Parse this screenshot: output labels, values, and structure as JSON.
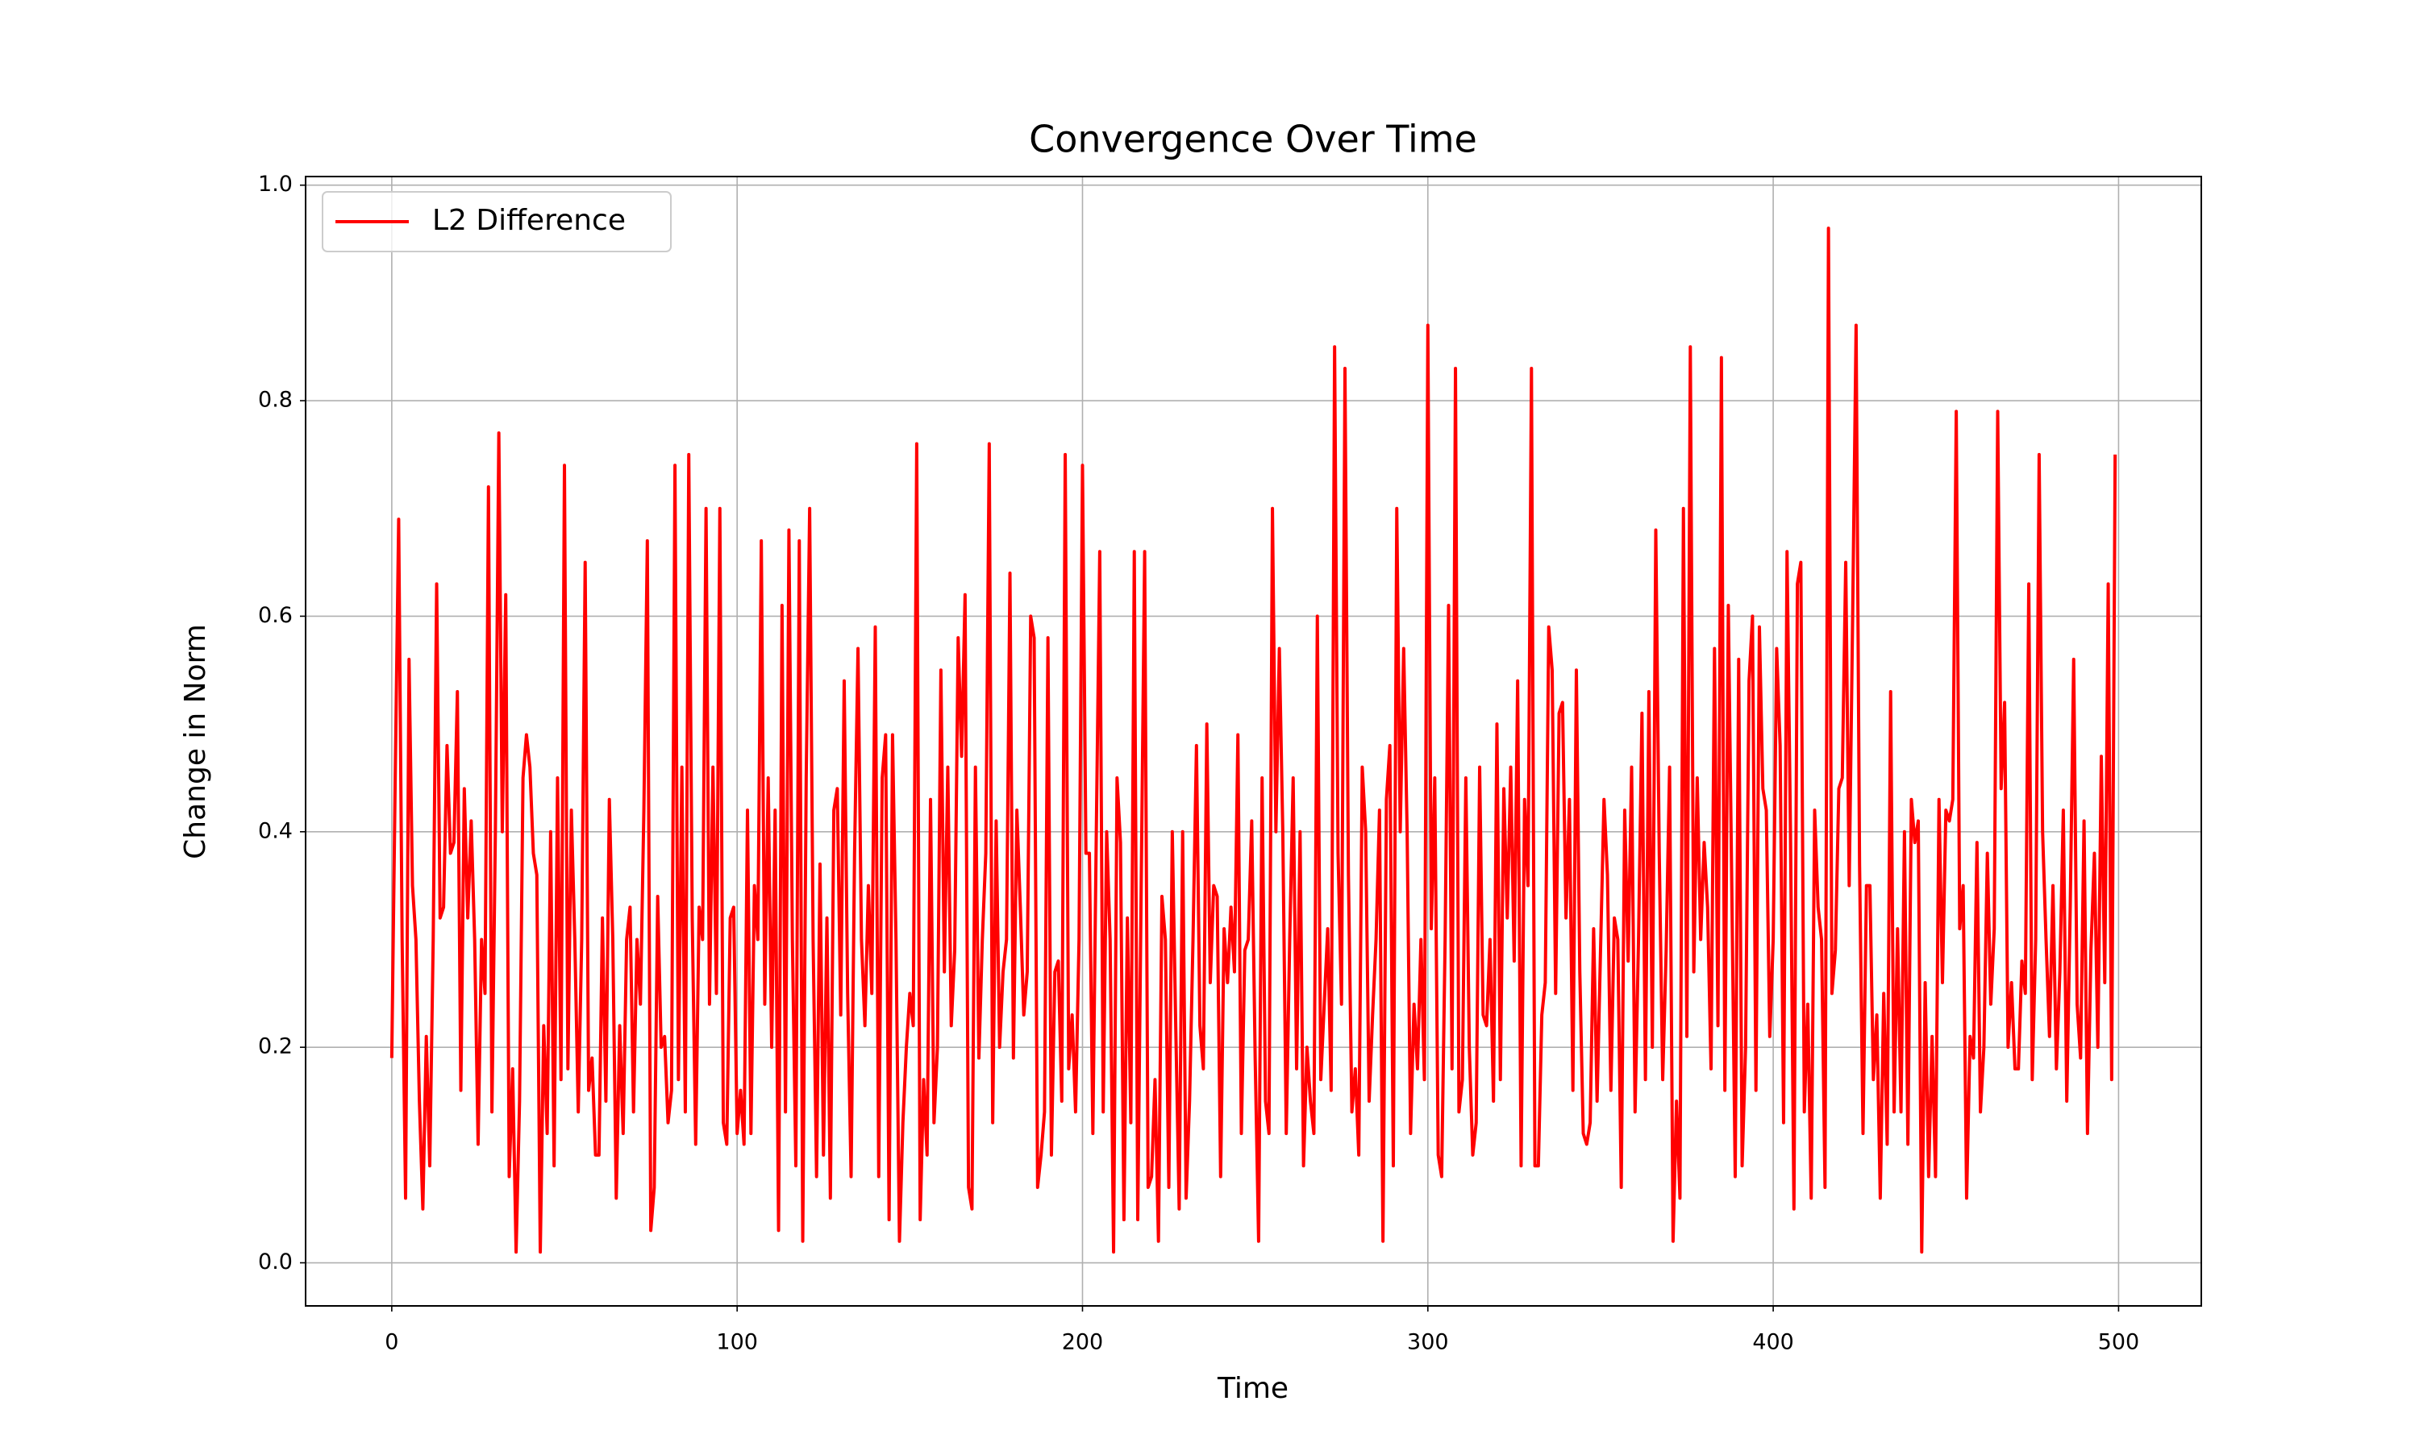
{
  "chart_data": {
    "type": "line",
    "title": "Convergence Over Time",
    "xlabel": "Time",
    "ylabel": "Change in Norm",
    "series": [
      {
        "name": "L2 Difference",
        "color": "#ff0000",
        "values": [
          0.19,
          0.45,
          0.69,
          0.3,
          0.06,
          0.56,
          0.35,
          0.3,
          0.15,
          0.05,
          0.21,
          0.09,
          0.3,
          0.63,
          0.32,
          0.33,
          0.48,
          0.38,
          0.39,
          0.53,
          0.16,
          0.44,
          0.32,
          0.41,
          0.3,
          0.11,
          0.3,
          0.25,
          0.72,
          0.14,
          0.4,
          0.77,
          0.4,
          0.62,
          0.08,
          0.18,
          0.01,
          0.15,
          0.45,
          0.49,
          0.46,
          0.38,
          0.36,
          0.01,
          0.22,
          0.12,
          0.4,
          0.09,
          0.45,
          0.17,
          0.74,
          0.18,
          0.42,
          0.3,
          0.14,
          0.3,
          0.65,
          0.16,
          0.19,
          0.1,
          0.1,
          0.32,
          0.15,
          0.43,
          0.3,
          0.06,
          0.22,
          0.12,
          0.3,
          0.33,
          0.14,
          0.3,
          0.24,
          0.42,
          0.67,
          0.03,
          0.07,
          0.34,
          0.2,
          0.21,
          0.13,
          0.16,
          0.74,
          0.17,
          0.46,
          0.14,
          0.75,
          0.32,
          0.11,
          0.33,
          0.3,
          0.7,
          0.24,
          0.46,
          0.25,
          0.7,
          0.13,
          0.11,
          0.32,
          0.33,
          0.12,
          0.16,
          0.11,
          0.42,
          0.12,
          0.35,
          0.3,
          0.67,
          0.24,
          0.45,
          0.2,
          0.42,
          0.03,
          0.61,
          0.14,
          0.68,
          0.3,
          0.09,
          0.67,
          0.02,
          0.45,
          0.7,
          0.3,
          0.08,
          0.37,
          0.1,
          0.32,
          0.06,
          0.42,
          0.44,
          0.23,
          0.54,
          0.25,
          0.08,
          0.38,
          0.57,
          0.3,
          0.22,
          0.35,
          0.25,
          0.59,
          0.08,
          0.45,
          0.49,
          0.04,
          0.49,
          0.3,
          0.02,
          0.13,
          0.2,
          0.25,
          0.22,
          0.76,
          0.04,
          0.17,
          0.1,
          0.43,
          0.13,
          0.2,
          0.55,
          0.27,
          0.46,
          0.22,
          0.29,
          0.58,
          0.47,
          0.62,
          0.07,
          0.05,
          0.46,
          0.19,
          0.3,
          0.38,
          0.76,
          0.13,
          0.41,
          0.2,
          0.27,
          0.3,
          0.64,
          0.19,
          0.42,
          0.33,
          0.23,
          0.27,
          0.6,
          0.58,
          0.07,
          0.1,
          0.14,
          0.58,
          0.1,
          0.27,
          0.28,
          0.15,
          0.75,
          0.18,
          0.23,
          0.14,
          0.3,
          0.74,
          0.38,
          0.38,
          0.12,
          0.4,
          0.66,
          0.14,
          0.4,
          0.3,
          0.01,
          0.45,
          0.39,
          0.04,
          0.32,
          0.13,
          0.66,
          0.04,
          0.35,
          0.66,
          0.07,
          0.08,
          0.17,
          0.02,
          0.34,
          0.3,
          0.07,
          0.4,
          0.22,
          0.05,
          0.4,
          0.06,
          0.15,
          0.3,
          0.48,
          0.22,
          0.18,
          0.5,
          0.26,
          0.35,
          0.34,
          0.08,
          0.31,
          0.26,
          0.33,
          0.27,
          0.49,
          0.12,
          0.29,
          0.3,
          0.41,
          0.19,
          0.02,
          0.45,
          0.15,
          0.12,
          0.7,
          0.4,
          0.57,
          0.4,
          0.12,
          0.3,
          0.45,
          0.18,
          0.4,
          0.09,
          0.2,
          0.15,
          0.12,
          0.6,
          0.17,
          0.24,
          0.31,
          0.16,
          0.85,
          0.38,
          0.24,
          0.83,
          0.36,
          0.14,
          0.18,
          0.1,
          0.46,
          0.4,
          0.15,
          0.23,
          0.3,
          0.42,
          0.02,
          0.43,
          0.48,
          0.09,
          0.7,
          0.4,
          0.57,
          0.4,
          0.12,
          0.24,
          0.18,
          0.3,
          0.17,
          0.87,
          0.31,
          0.45,
          0.1,
          0.08,
          0.3,
          0.61,
          0.18,
          0.83,
          0.14,
          0.17,
          0.45,
          0.2,
          0.1,
          0.13,
          0.46,
          0.23,
          0.22,
          0.3,
          0.15,
          0.5,
          0.17,
          0.44,
          0.32,
          0.46,
          0.28,
          0.54,
          0.09,
          0.43,
          0.35,
          0.83,
          0.09,
          0.09,
          0.23,
          0.26,
          0.59,
          0.55,
          0.25,
          0.51,
          0.52,
          0.32,
          0.43,
          0.16,
          0.55,
          0.27,
          0.12,
          0.11,
          0.13,
          0.31,
          0.15,
          0.29,
          0.43,
          0.36,
          0.16,
          0.32,
          0.3,
          0.07,
          0.42,
          0.28,
          0.46,
          0.14,
          0.3,
          0.51,
          0.17,
          0.53,
          0.2,
          0.68,
          0.38,
          0.17,
          0.29,
          0.46,
          0.02,
          0.15,
          0.06,
          0.7,
          0.21,
          0.85,
          0.27,
          0.45,
          0.3,
          0.39,
          0.33,
          0.18,
          0.57,
          0.22,
          0.84,
          0.16,
          0.61,
          0.35,
          0.08,
          0.56,
          0.09,
          0.2,
          0.54,
          0.6,
          0.16,
          0.59,
          0.44,
          0.42,
          0.21,
          0.3,
          0.57,
          0.48,
          0.13,
          0.66,
          0.4,
          0.05,
          0.63,
          0.65,
          0.14,
          0.24,
          0.06,
          0.42,
          0.33,
          0.3,
          0.07,
          0.96,
          0.25,
          0.29,
          0.44,
          0.45,
          0.65,
          0.35,
          0.6,
          0.87,
          0.37,
          0.12,
          0.35,
          0.35,
          0.17,
          0.23,
          0.06,
          0.25,
          0.11,
          0.53,
          0.14,
          0.31,
          0.14,
          0.4,
          0.11,
          0.43,
          0.39,
          0.41,
          0.01,
          0.26,
          0.08,
          0.21,
          0.08,
          0.43,
          0.26,
          0.42,
          0.41,
          0.43,
          0.79,
          0.31,
          0.35,
          0.06,
          0.21,
          0.19,
          0.39,
          0.14,
          0.2,
          0.38,
          0.24,
          0.31,
          0.79,
          0.44,
          0.52,
          0.2,
          0.26,
          0.18,
          0.18,
          0.28,
          0.25,
          0.63,
          0.17,
          0.3,
          0.75,
          0.4,
          0.3,
          0.21,
          0.35,
          0.18,
          0.27,
          0.42,
          0.15,
          0.33,
          0.56,
          0.24,
          0.19,
          0.41,
          0.12,
          0.29,
          0.38,
          0.2,
          0.47,
          0.26,
          0.63,
          0.17,
          0.75
        ]
      }
    ],
    "xlim": [
      -24.95,
      523.95
    ],
    "xticks": [
      0,
      100,
      200,
      300,
      400,
      500
    ],
    "ylim": [
      -0.04,
      1.008
    ],
    "yticks": [
      {
        "value": 0,
        "label": "0.0"
      },
      0.2,
      0.4,
      0.6,
      0.8,
      {
        "value": 1,
        "label": "1.0"
      }
    ],
    "grid": true,
    "legend": "upper left"
  }
}
